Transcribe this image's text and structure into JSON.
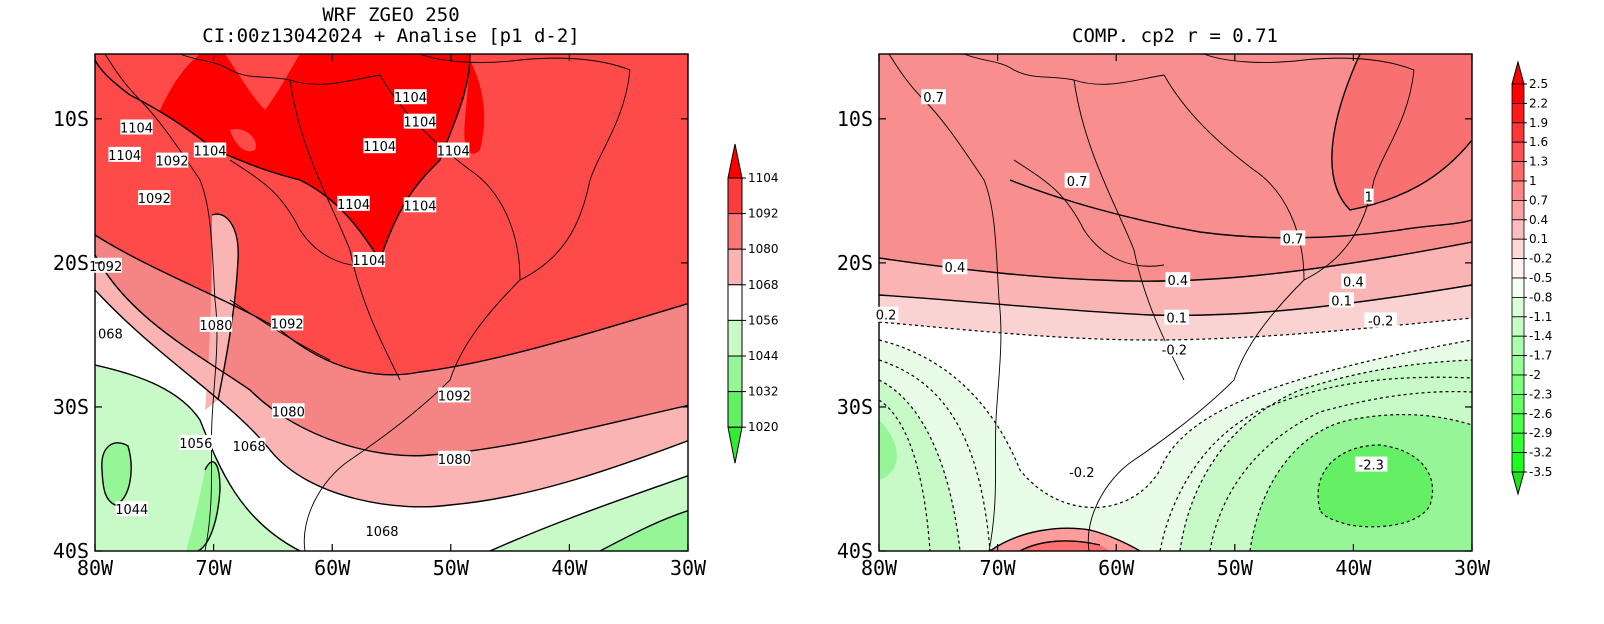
{
  "left": {
    "title_line1": "WRF ZGEO 250",
    "title_line2": "CI:00z13042024 + Analise  [p1 d-2]",
    "x_ticks": [
      "80W",
      "70W",
      "60W",
      "50W",
      "40W",
      "30W"
    ],
    "y_ticks": [
      "10S",
      "20S",
      "30S",
      "40S"
    ],
    "contour_labels": [
      {
        "text": "1104",
        "lon": -76.5,
        "lat": -10.6
      },
      {
        "text": "1104",
        "lon": -77.5,
        "lat": -12.5
      },
      {
        "text": "1092",
        "lon": -73.5,
        "lat": -12.9
      },
      {
        "text": "1104",
        "lon": -70.3,
        "lat": -12.2
      },
      {
        "text": "1092",
        "lon": -75.0,
        "lat": -15.5
      },
      {
        "text": "1104",
        "lon": -58.2,
        "lat": -15.9
      },
      {
        "text": "1104",
        "lon": -56.0,
        "lat": -11.9
      },
      {
        "text": "1104",
        "lon": -53.4,
        "lat": -8.5
      },
      {
        "text": "1104",
        "lon": -52.6,
        "lat": -10.2
      },
      {
        "text": "1104",
        "lon": -49.8,
        "lat": -12.2
      },
      {
        "text": "1104",
        "lon": -52.6,
        "lat": -16.0
      },
      {
        "text": "1104",
        "lon": -56.9,
        "lat": -19.8
      },
      {
        "text": "1092",
        "lon": -79.1,
        "lat": -20.2
      },
      {
        "text": "068",
        "lon": -78.7,
        "lat": -24.9
      },
      {
        "text": "1080",
        "lon": -69.8,
        "lat": -24.3
      },
      {
        "text": "1092",
        "lon": -63.8,
        "lat": -24.2
      },
      {
        "text": "1080",
        "lon": -63.7,
        "lat": -30.3
      },
      {
        "text": "1092",
        "lon": -49.7,
        "lat": -29.2
      },
      {
        "text": "1056",
        "lon": -71.5,
        "lat": -32.5
      },
      {
        "text": "1068",
        "lon": -67.0,
        "lat": -32.7
      },
      {
        "text": "1080",
        "lon": -49.7,
        "lat": -33.6
      },
      {
        "text": "1044",
        "lon": -76.9,
        "lat": -37.1
      },
      {
        "text": "1068",
        "lon": -55.8,
        "lat": -38.6
      }
    ],
    "colorbar": {
      "labels": [
        "1104",
        "1092",
        "1080",
        "1068",
        "1056",
        "1044",
        "1032",
        "1020"
      ],
      "colors": [
        "#ff0000",
        "#ff3c3c",
        "#f87878",
        "#fab4b4",
        "#ffffff",
        "#c8fac8",
        "#96f596",
        "#64f064",
        "#32eb32"
      ]
    }
  },
  "right": {
    "title": "COMP. cp2  r =  0.71",
    "x_ticks": [
      "80W",
      "70W",
      "60W",
      "50W",
      "40W",
      "30W"
    ],
    "y_ticks": [
      "10S",
      "20S",
      "30S",
      "40S"
    ],
    "contour_labels": [
      {
        "text": "0.7",
        "lon": -75.4,
        "lat": -8.5
      },
      {
        "text": "0.7",
        "lon": -63.3,
        "lat": -14.3
      },
      {
        "text": "1",
        "lon": -38.7,
        "lat": -15.4
      },
      {
        "text": "0.7",
        "lon": -45.1,
        "lat": -18.3
      },
      {
        "text": "0.4",
        "lon": -73.6,
        "lat": -20.3
      },
      {
        "text": "0.4",
        "lon": -54.8,
        "lat": -21.2
      },
      {
        "text": "0.4",
        "lon": -40.0,
        "lat": -21.3
      },
      {
        "text": "0.1",
        "lon": -41.0,
        "lat": -22.6
      },
      {
        "text": "0.2",
        "lon": -79.4,
        "lat": -23.6
      },
      {
        "text": "0.1",
        "lon": -54.9,
        "lat": -23.8
      },
      {
        "text": "-0.2",
        "lon": -37.7,
        "lat": -24.0
      },
      {
        "text": "-0.2",
        "lon": -55.1,
        "lat": -26.0
      },
      {
        "text": "-0.2",
        "lon": -62.9,
        "lat": -34.5
      },
      {
        "text": "-2.3",
        "lon": -38.5,
        "lat": -34.0
      }
    ],
    "colorbar": {
      "labels": [
        "2.5",
        "2.2",
        "1.9",
        "1.6",
        "1.3",
        "1",
        "0.7",
        "0.4",
        "0.1",
        "-0.2",
        "-0.5",
        "-0.8",
        "-1.1",
        "-1.4",
        "-1.7",
        "-2",
        "-2.3",
        "-2.6",
        "-2.9",
        "-3.2",
        "-3.5"
      ]
    }
  }
}
